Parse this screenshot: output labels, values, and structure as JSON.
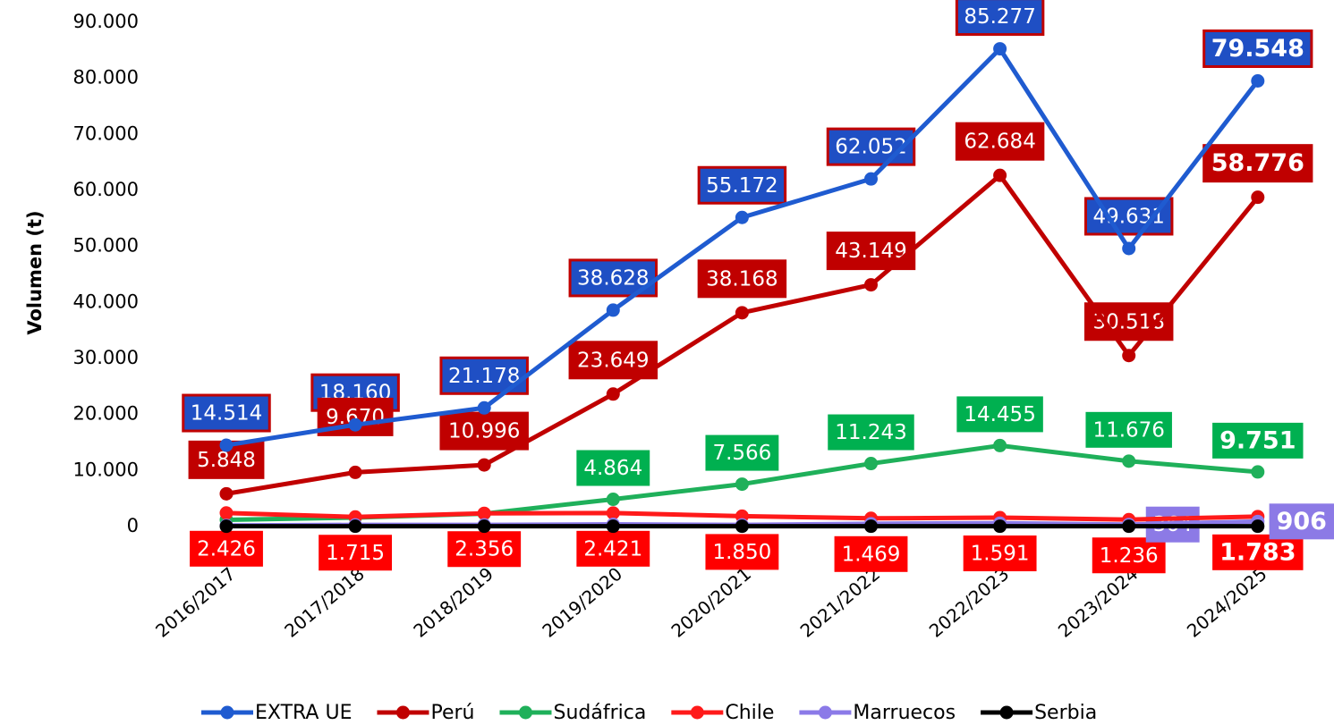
{
  "chart_data": {
    "type": "line",
    "y_label": "Volumen (t)",
    "categories": [
      "2016/2017",
      "2017/2018",
      "2018/2019",
      "2019/2020",
      "2020/2021",
      "2021/2022",
      "2022/2023",
      "2023/2024",
      "2024/2025"
    ],
    "series": [
      {
        "name": "EXTRA UE",
        "color": "#1f5bd0",
        "label_color": "#1f4fc4",
        "values": [
          14514,
          18160,
          21178,
          38628,
          55172,
          62052,
          85277,
          49631,
          79548
        ],
        "value_labels": [
          "14.514",
          "18.160",
          "21.178",
          "38.628",
          "55.172",
          "62.052",
          "85.277",
          "49.631",
          "79.548"
        ]
      },
      {
        "name": "Perú",
        "color": "#c00000",
        "label_color": "#c00000",
        "values": [
          5848,
          9670,
          10996,
          23649,
          38168,
          43149,
          62684,
          30518,
          58776
        ],
        "value_labels": [
          "5.848",
          "9.670",
          "10.996",
          "23.649",
          "38.168",
          "43.149",
          "62.684",
          "30.518",
          "58.776"
        ]
      },
      {
        "name": "Sudáfrica",
        "color": "#1fb05a",
        "label_color": "#00b050",
        "values": [
          1200,
          1600,
          2300,
          4864,
          7566,
          11243,
          14455,
          11676,
          9751
        ],
        "value_labels": [
          null,
          null,
          null,
          "4.864",
          "7.566",
          "11.243",
          "14.455",
          "11.676",
          "9.751"
        ]
      },
      {
        "name": "Chile",
        "color": "#ff1a1a",
        "label_color": "#ff0000",
        "values": [
          2426,
          1715,
          2356,
          2421,
          1850,
          1469,
          1591,
          1236,
          1783
        ],
        "value_labels": [
          "2.426",
          "1.715",
          "2.356",
          "2.421",
          "1.850",
          "1.469",
          "1.591",
          "1.236",
          "1.783"
        ]
      },
      {
        "name": "Marruecos",
        "color": "#8b7ae8",
        "label_color": "#8c7ae6",
        "values": [
          200,
          300,
          300,
          400,
          300,
          500,
          600,
          364,
          906
        ],
        "value_labels": [
          null,
          null,
          null,
          null,
          null,
          null,
          null,
          "364",
          "906"
        ]
      },
      {
        "name": "Serbia",
        "color": "#000000",
        "values": [
          50,
          50,
          50,
          50,
          50,
          50,
          50,
          50,
          50
        ]
      }
    ],
    "ylim": [
      0,
      90000
    ],
    "yticks": [
      0,
      {
        "value": 10000,
        "label": "10.000"
      },
      {
        "value": 20000,
        "label": "20.000"
      },
      {
        "value": 30000,
        "label": "30.000"
      },
      {
        "value": 40000,
        "label": "40.000"
      },
      {
        "value": 50000,
        "label": "50.000"
      },
      {
        "value": 60000,
        "label": "60.000"
      },
      {
        "value": 70000,
        "label": "70.000"
      },
      {
        "value": 80000,
        "label": "80.000"
      },
      {
        "value": 90000,
        "label": "90.000"
      }
    ],
    "grid": false
  }
}
